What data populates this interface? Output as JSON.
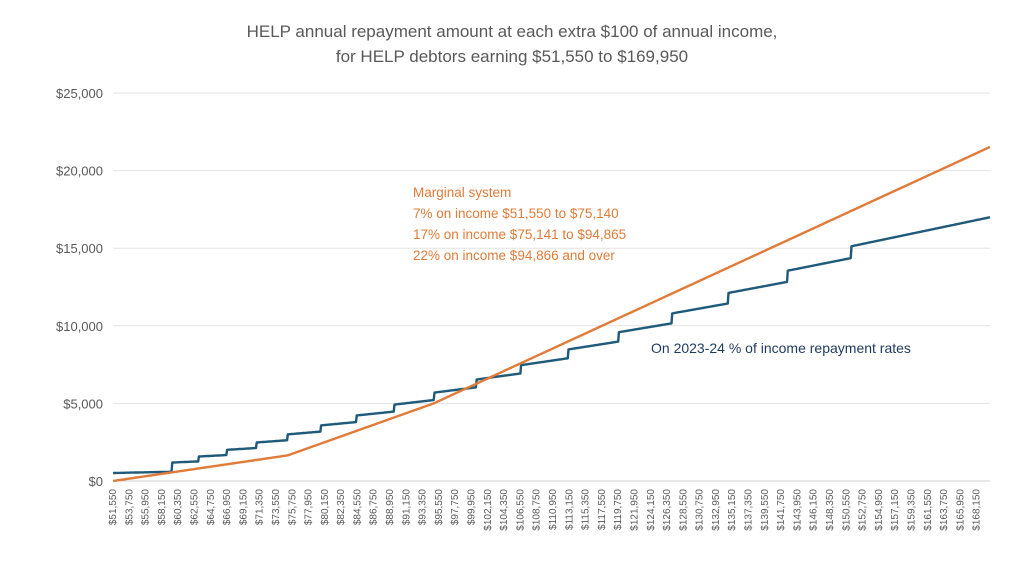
{
  "chart_data": {
    "type": "line",
    "title": [
      "HELP annual repayment amount at each extra $100 of annual income,",
      "for HELP debtors earning $51,550 to $169,950"
    ],
    "xlabel": "",
    "ylabel": "",
    "x_range": [
      51550,
      169950
    ],
    "x_step": 100,
    "x_tick_labels": [
      "$51,550",
      "$53,750",
      "$55,950",
      "$58,150",
      "$60,350",
      "$62,550",
      "$64,750",
      "$66,950",
      "$69,150",
      "$71,350",
      "$73,550",
      "$75,750",
      "$77,950",
      "$80,150",
      "$82,350",
      "$84,550",
      "$86,750",
      "$88,950",
      "$91,150",
      "$93,350",
      "$95,550",
      "$97,750",
      "$99,950",
      "$102,150",
      "$104,350",
      "$106,550",
      "$108,750",
      "$110,950",
      "$113,150",
      "$115,350",
      "$117,550",
      "$119,750",
      "$121,950",
      "$124,150",
      "$126,350",
      "$128,550",
      "$130,750",
      "$132,950",
      "$135,150",
      "$137,350",
      "$139,550",
      "$141,750",
      "$143,950",
      "$146,150",
      "$148,350",
      "$150,550",
      "$152,750",
      "$154,950",
      "$157,150",
      "$159,350",
      "$161,550",
      "$163,750",
      "$165,950",
      "$168,150"
    ],
    "x_tick_values": [
      51550,
      53750,
      55950,
      58150,
      60350,
      62550,
      64750,
      66950,
      69150,
      71350,
      73550,
      75750,
      77950,
      80150,
      82350,
      84550,
      86750,
      88950,
      91150,
      93350,
      95550,
      97750,
      99950,
      102150,
      104350,
      106550,
      108750,
      110950,
      113150,
      115350,
      117550,
      119750,
      121950,
      124150,
      126350,
      128550,
      130750,
      132950,
      135150,
      137350,
      139550,
      141750,
      143950,
      146150,
      148350,
      150550,
      152750,
      154950,
      157150,
      159350,
      161550,
      163750,
      165950,
      168150
    ],
    "ylim": [
      0,
      25000
    ],
    "y_ticks": [
      0,
      5000,
      10000,
      15000,
      20000,
      25000
    ],
    "y_tick_labels": [
      "$0",
      "$5,000",
      "$10,000",
      "$15,000",
      "$20,000",
      "$25,000"
    ],
    "grid": true,
    "legend": "none",
    "series": [
      {
        "name": "On 2023-24 % of income repayment rates",
        "color": "#1F5A7A",
        "kind": "tiered-percent-of-total-income",
        "thresholds": [
          {
            "from": 51550,
            "rate": 0.01
          },
          {
            "from": 59519,
            "rate": 0.02
          },
          {
            "from": 63090,
            "rate": 0.025
          },
          {
            "from": 66876,
            "rate": 0.03
          },
          {
            "from": 70889,
            "rate": 0.035
          },
          {
            "from": 75141,
            "rate": 0.04
          },
          {
            "from": 79650,
            "rate": 0.045
          },
          {
            "from": 84430,
            "rate": 0.05
          },
          {
            "from": 89495,
            "rate": 0.055
          },
          {
            "from": 94866,
            "rate": 0.06
          },
          {
            "from": 100558,
            "rate": 0.065
          },
          {
            "from": 106591,
            "rate": 0.07
          },
          {
            "from": 112986,
            "rate": 0.075
          },
          {
            "from": 119765,
            "rate": 0.08
          },
          {
            "from": 126951,
            "rate": 0.085
          },
          {
            "from": 134569,
            "rate": 0.09
          },
          {
            "from": 142643,
            "rate": 0.095
          },
          {
            "from": 151201,
            "rate": 0.1
          }
        ]
      },
      {
        "name": "Marginal system",
        "color": "#E07B39",
        "kind": "marginal",
        "brackets": [
          {
            "from": 51550,
            "to": 75140,
            "rate": 0.07
          },
          {
            "from": 75141,
            "to": 94865,
            "rate": 0.17
          },
          {
            "from": 94866,
            "to": null,
            "rate": 0.22
          }
        ]
      }
    ],
    "annotations": {
      "marginal": [
        "Marginal system",
        "7% on income $51,550 to $75,140",
        "17% on income $75,141  to $94,865",
        "22% on income $94,866  and over"
      ],
      "tiered": "On 2023-24 % of income repayment rates"
    }
  }
}
